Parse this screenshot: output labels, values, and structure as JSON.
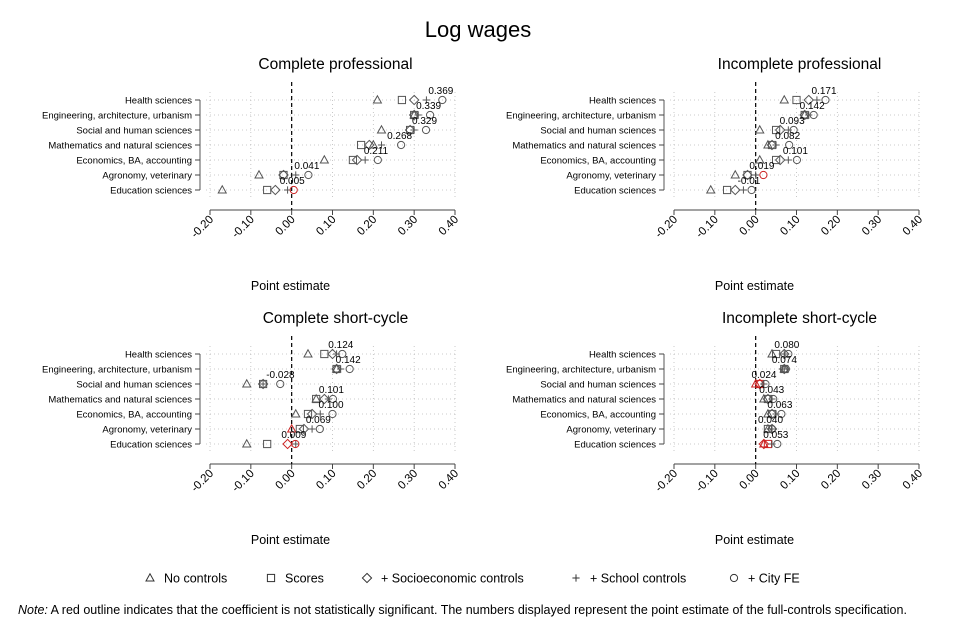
{
  "figure": {
    "title": "Log wages",
    "note_label": "Note:",
    "note_text": " A red outline indicates that the coefficient is not statistically significant. The numbers displayed represent the point estimate of the full-controls specification."
  },
  "legend": {
    "position": "bottom",
    "items": [
      {
        "marker": "triangle",
        "label": "No controls"
      },
      {
        "marker": "square",
        "label": "Scores"
      },
      {
        "marker": "diamond",
        "label": "+ Socioeconomic controls"
      },
      {
        "marker": "plus",
        "label": "+ School controls"
      },
      {
        "marker": "circle",
        "label": "+ City FE"
      }
    ]
  },
  "colors": {
    "default": "#555555",
    "not_significant": "#cc2222",
    "reference_line": "#000000",
    "grid": "#bbbbbb"
  },
  "chart_data": [
    {
      "type": "scatter",
      "title": "Complete professional",
      "xlabel": "Point estimate",
      "xlim": [
        -0.2,
        0.4
      ],
      "xticks": [
        "-0.20",
        "-0.10",
        "0.00",
        "0.10",
        "0.20",
        "0.30",
        "0.40"
      ],
      "categories": [
        "Health sciences",
        "Engineering, architecture, urbanism",
        "Social and human sciences",
        "Mathematics and natural sciences",
        "Economics, BA, accounting",
        "Agronomy, veterinary",
        "Education sciences"
      ],
      "labels": [
        "0.369",
        "0.339",
        "0.329",
        "0.268",
        "0.211",
        "0.041",
        "0.005"
      ],
      "series": [
        {
          "name": "No controls",
          "marker": "triangle",
          "values": [
            0.21,
            0.3,
            0.22,
            0.2,
            0.08,
            -0.08,
            -0.17
          ]
        },
        {
          "name": "Scores",
          "marker": "square",
          "values": [
            0.27,
            0.3,
            0.29,
            0.17,
            0.15,
            -0.02,
            -0.06
          ]
        },
        {
          "name": "+ Socioeconomic controls",
          "marker": "diamond",
          "values": [
            0.3,
            0.3,
            0.29,
            0.19,
            0.16,
            -0.02,
            -0.04
          ]
        },
        {
          "name": "+ School controls",
          "marker": "plus",
          "values": [
            0.33,
            0.31,
            0.3,
            0.22,
            0.18,
            0.01,
            -0.01
          ]
        },
        {
          "name": "+ City FE",
          "marker": "circle",
          "values": [
            0.369,
            0.339,
            0.329,
            0.268,
            0.211,
            0.041,
            0.005
          ]
        }
      ],
      "not_significant": [
        [
          6,
          4
        ]
      ]
    },
    {
      "type": "scatter",
      "title": "Incomplete professional",
      "xlabel": "Point estimate",
      "xlim": [
        -0.2,
        0.4
      ],
      "xticks": [
        "-0.20",
        "-0.10",
        "0.00",
        "0.10",
        "0.20",
        "0.30",
        "0.40"
      ],
      "categories": [
        "Health sciences",
        "Engineering, architecture, urbanism",
        "Social and human sciences",
        "Mathematics and natural sciences",
        "Economics, BA, accounting",
        "Agronomy, veterinary",
        "Education sciences"
      ],
      "labels": [
        "0.171",
        "0.142",
        "0.093",
        "0.082",
        "0.101",
        "0.019",
        "-0.01"
      ],
      "series": [
        {
          "name": "No controls",
          "marker": "triangle",
          "values": [
            0.07,
            0.12,
            0.01,
            0.03,
            0.01,
            -0.05,
            -0.11
          ]
        },
        {
          "name": "Scores",
          "marker": "square",
          "values": [
            0.1,
            0.12,
            0.05,
            0.04,
            0.05,
            -0.02,
            -0.07
          ]
        },
        {
          "name": "+ Socioeconomic controls",
          "marker": "diamond",
          "values": [
            0.13,
            0.12,
            0.06,
            0.04,
            0.06,
            -0.02,
            -0.05
          ]
        },
        {
          "name": "+ School controls",
          "marker": "plus",
          "values": [
            0.15,
            0.13,
            0.08,
            0.05,
            0.08,
            0.0,
            -0.03
          ]
        },
        {
          "name": "+ City FE",
          "marker": "circle",
          "values": [
            0.171,
            0.142,
            0.093,
            0.082,
            0.101,
            0.019,
            -0.01
          ]
        }
      ],
      "not_significant": [
        [
          5,
          4
        ]
      ]
    },
    {
      "type": "scatter",
      "title": "Complete short-cycle",
      "xlabel": "Point estimate",
      "xlim": [
        -0.2,
        0.4
      ],
      "xticks": [
        "-0.20",
        "-0.10",
        "0.00",
        "0.10",
        "0.20",
        "0.30",
        "0.40"
      ],
      "categories": [
        "Health sciences",
        "Engineering, architecture, urbanism",
        "Social and human sciences",
        "Mathematics and natural sciences",
        "Economics, BA, accounting",
        "Agronomy, veterinary",
        "Education sciences"
      ],
      "labels": [
        "0.124",
        "0.142",
        "-0.028",
        "0.101",
        "0.100",
        "0.069",
        "0.009"
      ],
      "series": [
        {
          "name": "No controls",
          "marker": "triangle",
          "values": [
            0.04,
            0.11,
            -0.11,
            0.06,
            0.01,
            0.0,
            -0.11
          ]
        },
        {
          "name": "Scores",
          "marker": "square",
          "values": [
            0.08,
            0.11,
            -0.07,
            0.06,
            0.04,
            0.02,
            -0.06
          ]
        },
        {
          "name": "+ Socioeconomic controls",
          "marker": "diamond",
          "values": [
            0.1,
            0.11,
            -0.07,
            0.08,
            0.05,
            0.03,
            -0.01
          ]
        },
        {
          "name": "+ School controls",
          "marker": "plus",
          "values": [
            0.11,
            0.12,
            -0.07,
            0.09,
            0.07,
            0.05,
            0.01
          ]
        },
        {
          "name": "+ City FE",
          "marker": "circle",
          "values": [
            0.124,
            0.142,
            -0.028,
            0.101,
            0.1,
            0.069,
            0.009
          ]
        }
      ],
      "not_significant": [
        [
          5,
          0
        ],
        [
          6,
          2
        ],
        [
          6,
          4
        ]
      ]
    },
    {
      "type": "scatter",
      "title": "Incomplete short-cycle",
      "xlabel": "Point estimate",
      "xlim": [
        -0.2,
        0.4
      ],
      "xticks": [
        "-0.20",
        "-0.10",
        "0.00",
        "0.10",
        "0.20",
        "0.30",
        "0.40"
      ],
      "categories": [
        "Health sciences",
        "Engineering, architecture, urbanism",
        "Social and human sciences",
        "Mathematics and natural sciences",
        "Economics, BA, accounting",
        "Agronomy, veterinary",
        "Education sciences"
      ],
      "labels": [
        "0.080",
        "0.074",
        "0.024",
        "0.043",
        "0.063",
        "0.040",
        "0.053"
      ],
      "series": [
        {
          "name": "No controls",
          "marker": "triangle",
          "values": [
            0.04,
            0.07,
            0.0,
            0.02,
            0.03,
            0.03,
            0.02
          ]
        },
        {
          "name": "Scores",
          "marker": "square",
          "values": [
            0.05,
            0.07,
            0.01,
            0.03,
            0.04,
            0.03,
            0.03
          ]
        },
        {
          "name": "+ Socioeconomic controls",
          "marker": "diamond",
          "values": [
            0.07,
            0.07,
            0.01,
            0.03,
            0.04,
            0.04,
            0.02
          ]
        },
        {
          "name": "+ School controls",
          "marker": "plus",
          "values": [
            0.07,
            0.07,
            0.02,
            0.04,
            0.05,
            0.04,
            0.04
          ]
        },
        {
          "name": "+ City FE",
          "marker": "circle",
          "values": [
            0.08,
            0.074,
            0.024,
            0.043,
            0.063,
            0.04,
            0.053
          ]
        }
      ],
      "not_significant": [
        [
          2,
          0
        ],
        [
          2,
          1
        ],
        [
          2,
          2
        ],
        [
          6,
          0
        ],
        [
          6,
          1
        ],
        [
          6,
          2
        ]
      ]
    }
  ]
}
